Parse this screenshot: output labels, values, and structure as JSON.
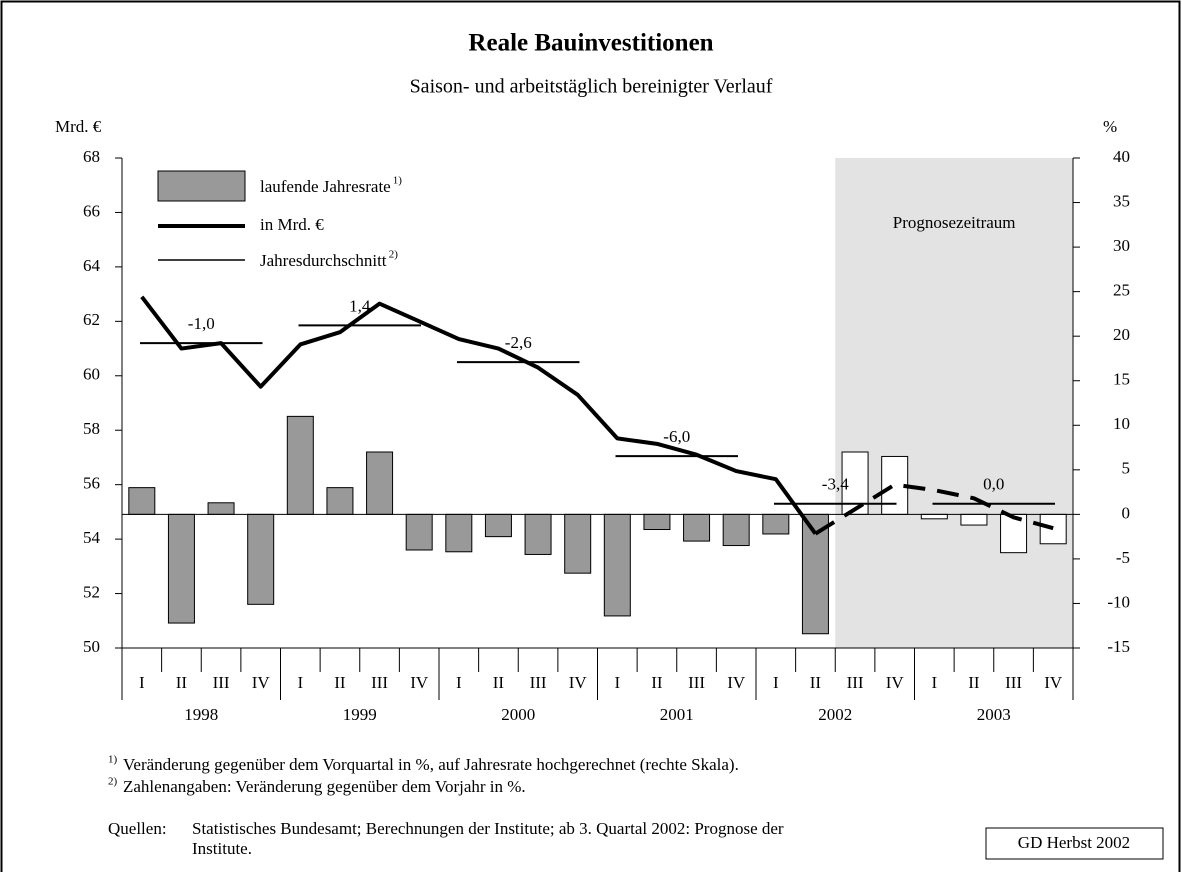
{
  "chart_data": {
    "type": "bar_line",
    "title": "Reale Bauinvestitionen",
    "subtitle": "Saison- und arbeitstäglich bereinigter Verlauf",
    "y_label": "Mrd. €",
    "y2_label": "%",
    "categories": [
      "I",
      "II",
      "III",
      "IV",
      "I",
      "II",
      "III",
      "IV",
      "I",
      "II",
      "III",
      "IV",
      "I",
      "II",
      "III",
      "IV",
      "I",
      "II",
      "III",
      "IV",
      "I",
      "II",
      "III",
      "IV"
    ],
    "years": [
      "1998",
      "1999",
      "2000",
      "2001",
      "2002",
      "2003"
    ],
    "ylim": [
      50,
      68
    ],
    "yticks": [
      50,
      52,
      54,
      56,
      58,
      60,
      62,
      64,
      66,
      68
    ],
    "y2lim": [
      -15,
      40
    ],
    "y2ticks": [
      -15,
      -10,
      -5,
      0,
      5,
      10,
      15,
      20,
      25,
      30,
      35,
      40
    ],
    "forecast_start": 18,
    "forecast_label": "Prognosezeitraum",
    "series": [
      {
        "name": "laufende Jahresrate",
        "name_note": "1)",
        "type": "bar",
        "axis": "y2",
        "color": "#999999",
        "forecast_color": "#ffffff",
        "values": [
          3.0,
          -12.2,
          1.3,
          -10.1,
          11.0,
          3.0,
          7.0,
          -4.0,
          -4.2,
          -2.5,
          -4.5,
          -6.6,
          -11.4,
          -1.7,
          -3.0,
          -3.5,
          -2.2,
          -13.4,
          7.0,
          6.5,
          -0.5,
          -1.2,
          -4.3,
          -3.3
        ]
      },
      {
        "name": "in Mrd. €",
        "type": "line",
        "color": "#000000",
        "dashed_from": 17,
        "values": [
          62.9,
          61.0,
          61.2,
          59.6,
          61.15,
          61.6,
          62.65,
          62.0,
          61.35,
          61.0,
          60.3,
          59.3,
          57.7,
          57.5,
          57.1,
          56.5,
          56.2,
          54.2,
          55.1,
          56.0,
          55.8,
          55.5,
          54.8,
          54.4
        ]
      }
    ],
    "annual": {
      "name": "Jahresdurchschnitt",
      "name_note": "2)",
      "color": "#000000",
      "values": [
        61.2,
        61.85,
        60.5,
        57.05,
        55.3,
        55.3
      ],
      "labels": [
        "-1,0",
        "1,4",
        "-2,6",
        "-6,0",
        "-3,4",
        "0,0"
      ]
    },
    "footnotes": [
      {
        "note": "1)",
        "text": "Veränderung gegenüber dem Vorquartal in %, auf Jahresrate hochgerechnet (rechte Skala)."
      },
      {
        "note": "2)",
        "text": "Zahlenangaben: Veränderung gegenüber dem Vorjahr in %."
      }
    ],
    "source_label": "Quellen:",
    "source_lines": [
      "Statistisches Bundesamt; Berechnungen der Institute; ab 3. Quartal 2002: Prognose der",
      "Institute."
    ],
    "credit": "GD Herbst 2002"
  }
}
